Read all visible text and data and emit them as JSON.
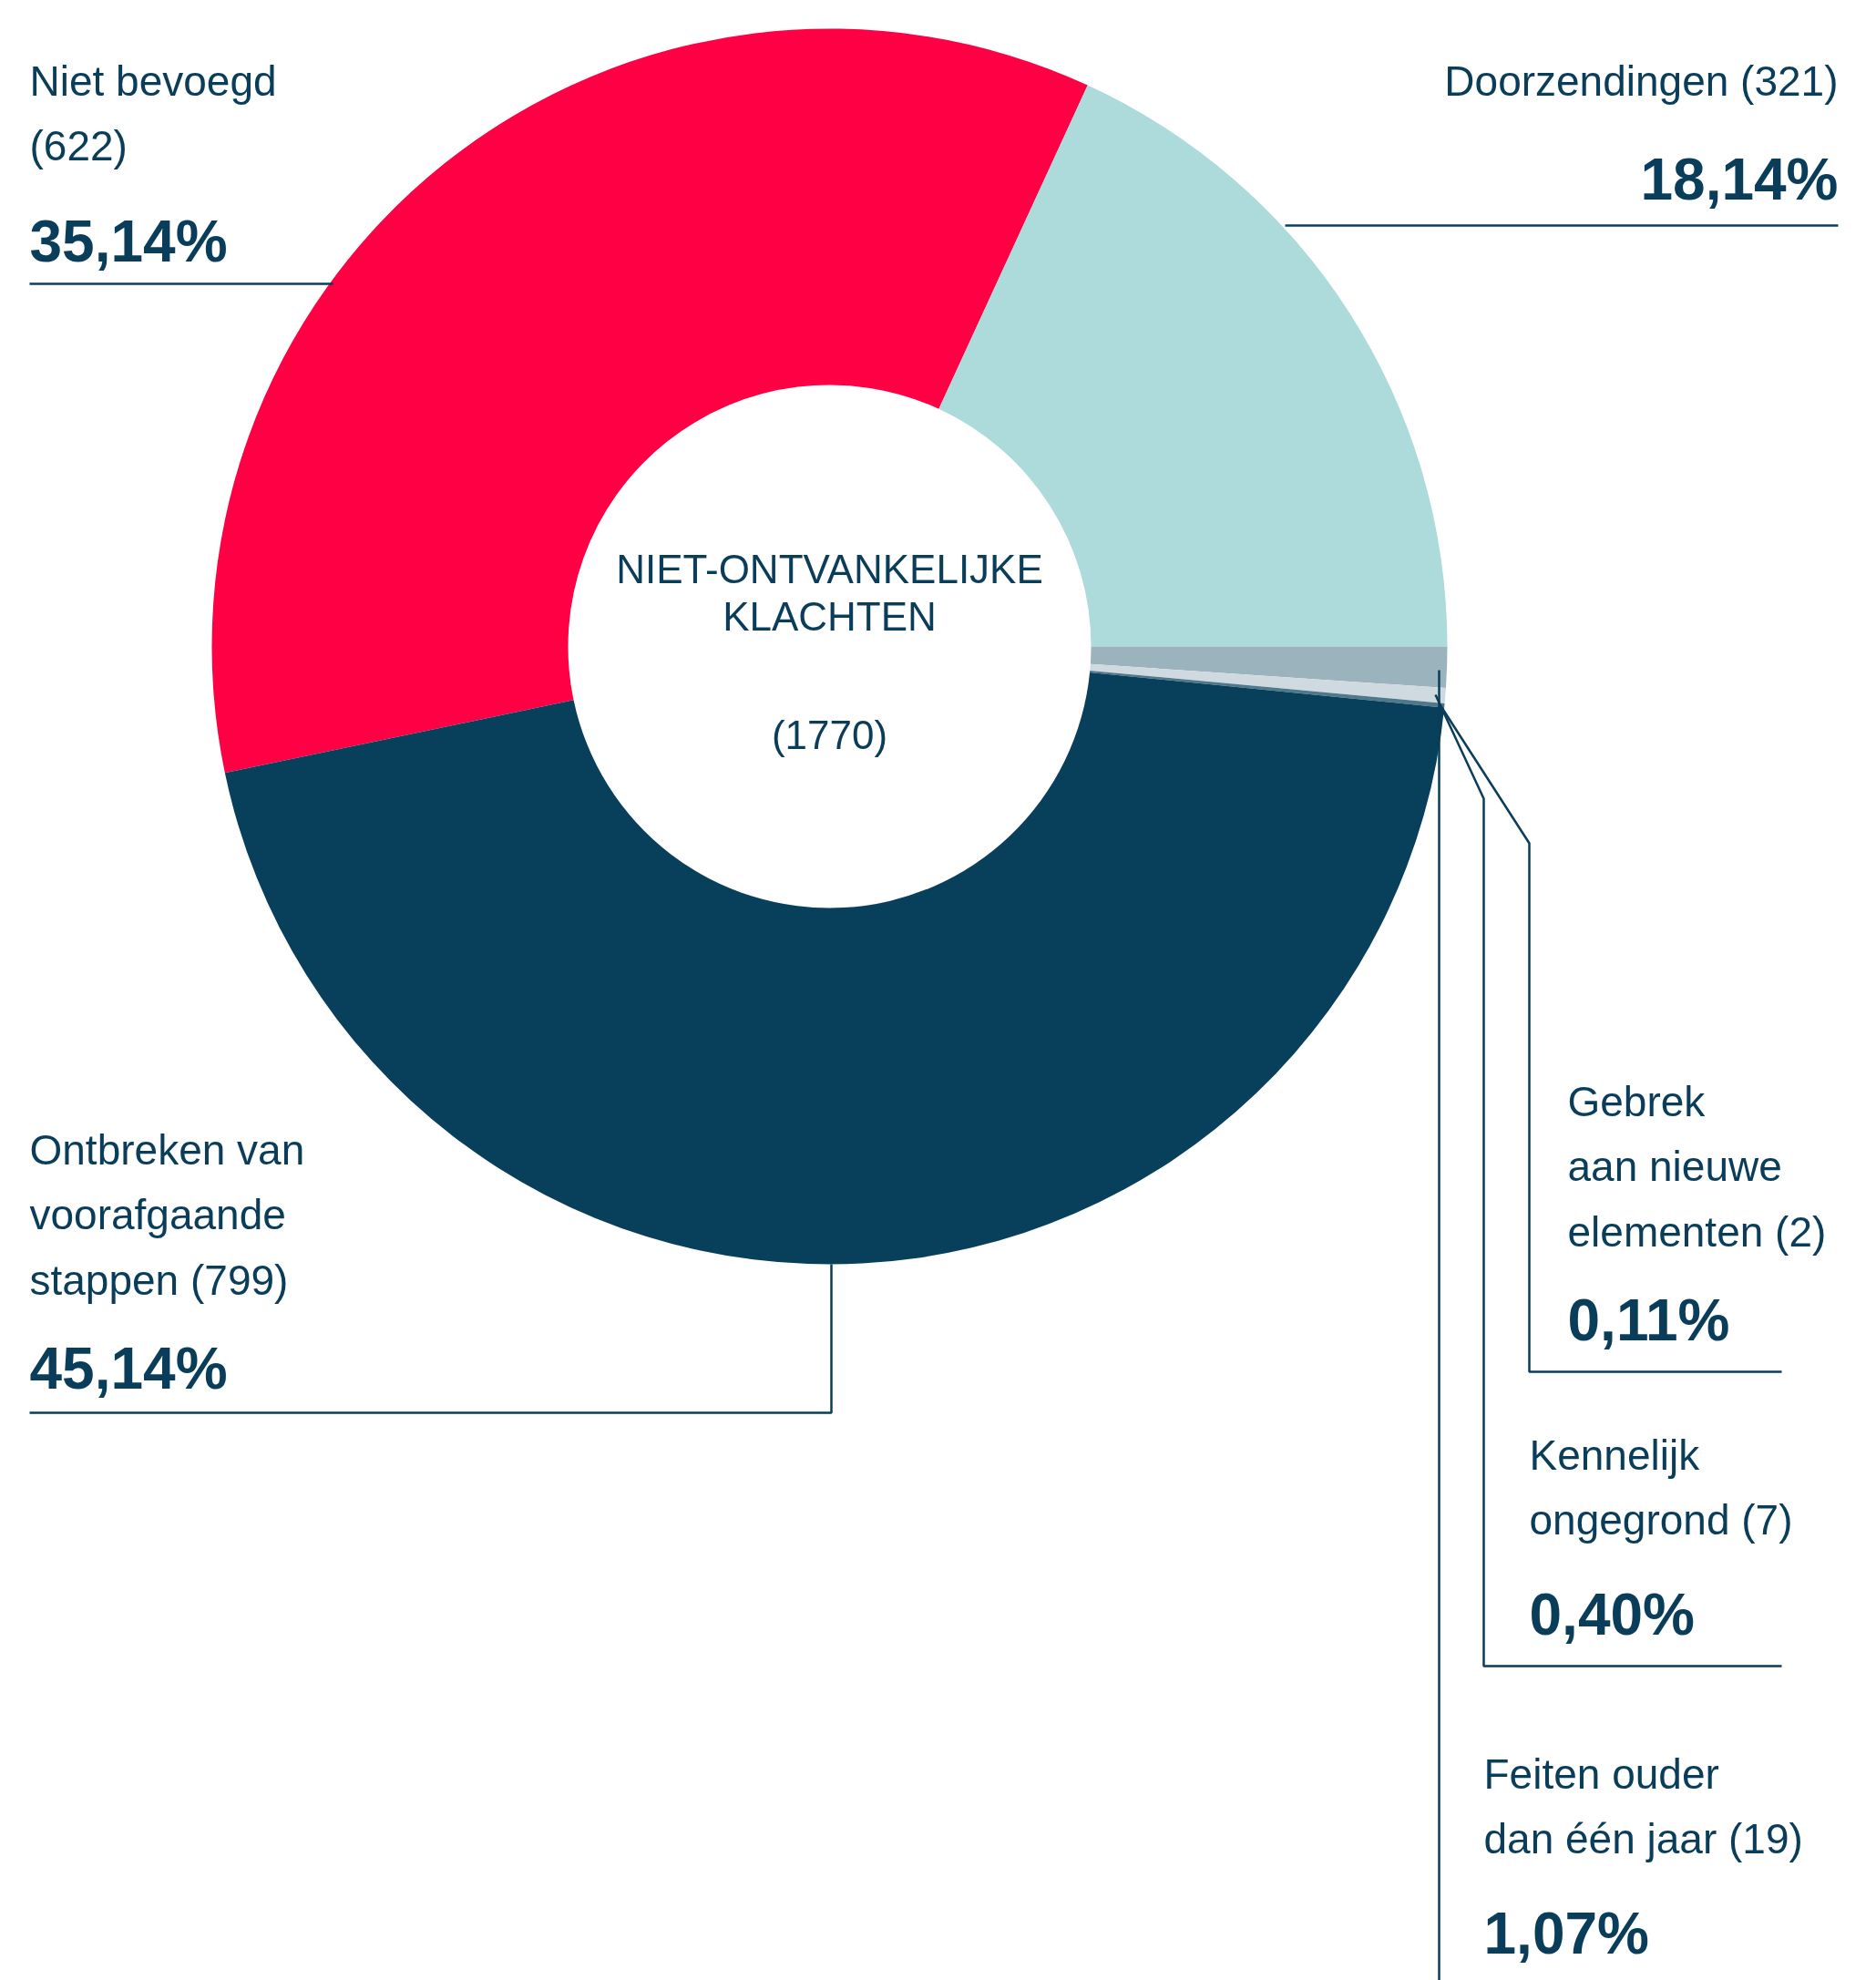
{
  "chart_data": {
    "type": "donut",
    "title": "NIET-ONTVANKELIJKE\nKLACHTEN",
    "subtitle": "(1770)",
    "categories": [
      "Niet bevoegd\n(622)",
      "Doorzendingen (321)",
      "Feiten ouder\ndan één jaar (19)",
      "Kennelijk\nongegrond (7)",
      "Gebrek\naan nieuwe\nelementen (2)",
      "Ontbreken van\nvoorafgaande\nstappen (799)"
    ],
    "values": [
      35.14,
      18.14,
      1.07,
      0.4,
      0.11,
      45.14
    ],
    "colors": [
      "#ff0044",
      "#addadb",
      "#9bb3bd",
      "#cfdae0",
      "#4f788a",
      "#08405c"
    ],
    "value_labels": [
      "35,14%",
      "18,14%",
      "1,07%",
      "0,40%",
      "0,11%",
      "45,14%"
    ]
  }
}
